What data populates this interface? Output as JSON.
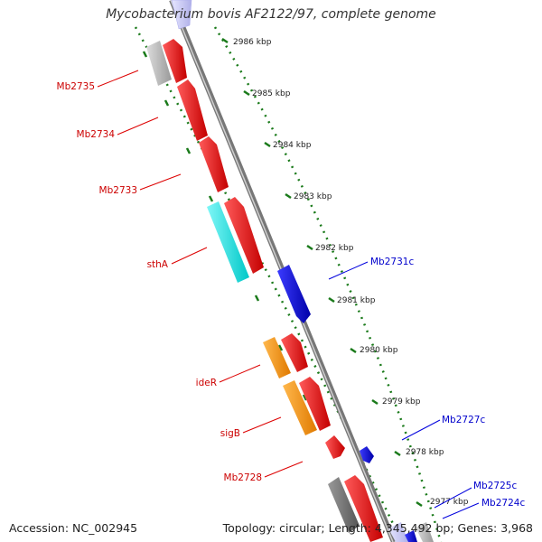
{
  "title": "Mycobacterium bovis AF2122/97, complete genome",
  "footer": {
    "accession": "Accession: NC_002945",
    "summary": "Topology: circular; Length: 4,345,492 bp; Genes: 3,968"
  },
  "ticks": [
    "2986 kbp",
    "2985 kbp",
    "2984 kbp",
    "2983 kbp",
    "2982 kbp",
    "2981 kbp",
    "2980 kbp",
    "2979 kbp",
    "2978 kbp",
    "2977 kbp"
  ],
  "left_labels": [
    "Mb2735",
    "Mb2734",
    "Mb2733",
    "sthA",
    "ideR",
    "sigB",
    "Mb2728"
  ],
  "right_labels": [
    "Mb2731c",
    "Mb2727c",
    "Mb2725c",
    "Mb2724c"
  ],
  "colors": {
    "forward_gene": "#ee0000",
    "reverse_gene": "#0000cc",
    "rna_gene": "#00dddd",
    "regulator_gene": "#ff9900",
    "other_gene": "#b8b8b8",
    "backbone": "#888888",
    "tick_marks": "#1a7a1a"
  }
}
